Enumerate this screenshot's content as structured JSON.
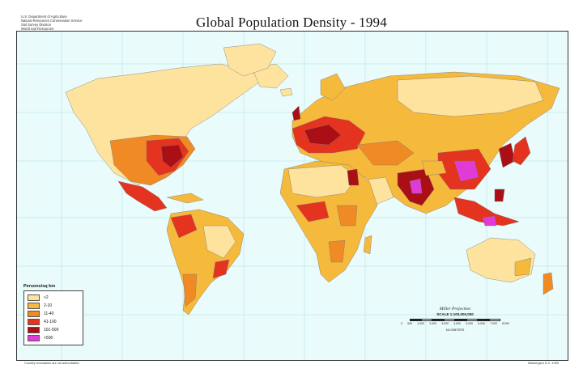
{
  "header": {
    "agency_lines": [
      "U.S. Department of Agriculture",
      "Natural Resources Conservation Service",
      "Soil Survey Division",
      "World Soil Resources"
    ],
    "title": "Global Population Density - 1994"
  },
  "legend": {
    "title": "Persons/sq km",
    "items": [
      {
        "label": "<2",
        "color": "#fde39e"
      },
      {
        "label": "2-10",
        "color": "#f5b93c"
      },
      {
        "label": "11-40",
        "color": "#f08a24"
      },
      {
        "label": "41-100",
        "color": "#e4331f"
      },
      {
        "label": "101-500",
        "color": "#a90f14"
      },
      {
        "label": ">500",
        "color": "#e03bd6"
      }
    ]
  },
  "scale": {
    "projection": "Miller Projection",
    "scale_text": "SCALE 1:100,000,000",
    "ticks": [
      "0",
      "500",
      "1,000",
      "2,000",
      "3,000",
      "4,000",
      "5,000",
      "6,000",
      "7,000",
      "8,000"
    ],
    "unit": "KILOMETERS"
  },
  "footer": {
    "left": "Country boundaries are not authoritative",
    "right": "Washington D.C. 1999"
  },
  "colors": {
    "ocean": "#e9fbfb",
    "graticule": "#9ed9e0",
    "coast": "#555555"
  }
}
